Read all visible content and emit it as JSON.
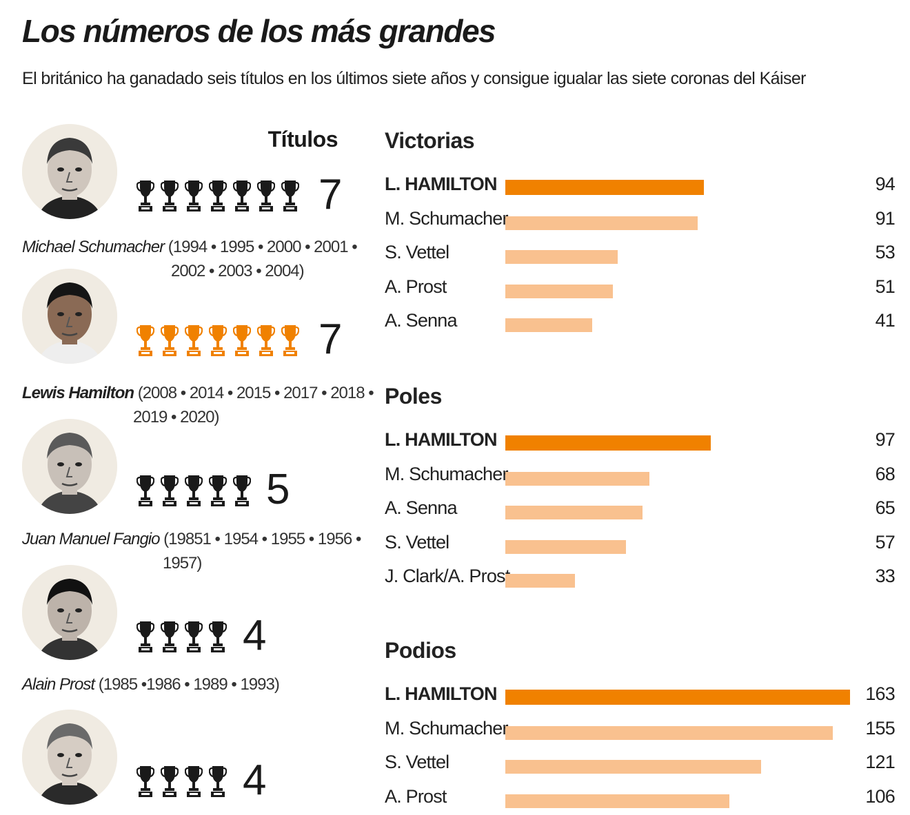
{
  "header": {
    "title": "Los números de los más grandes",
    "subtitle": "El británico ha ganadado seis títulos en los últimos siete años y consigue igualar las siete coronas del Káiser"
  },
  "titles_header": "Títulos",
  "champions": [
    {
      "name": "Michael Schumacher",
      "bold": false,
      "years_line1": "(1994 • 1995 • 2000 • 2001 •",
      "years_line2": "2002 • 2003 • 2004)",
      "titles": 7,
      "trophy_color": "#1a1a1a"
    },
    {
      "name": "Lewis Hamilton",
      "bold": true,
      "years_line1": "(2008 • 2014 • 2015 • 2017 • 2018 •",
      "years_line2": "2019 • 2020)",
      "titles": 7,
      "trophy_color": "#f08100"
    },
    {
      "name": "Juan Manuel Fangio",
      "bold": false,
      "years_line1": "(19851 • 1954 • 1955 • 1956 •",
      "years_line2": "1957)",
      "titles": 5,
      "trophy_color": "#1a1a1a"
    },
    {
      "name": "Alain Prost",
      "bold": false,
      "years_line1": "(1985 •1986 • 1989 • 1993)",
      "years_line2": "",
      "titles": 4,
      "trophy_color": "#1a1a1a"
    },
    {
      "name": "",
      "bold": false,
      "years_line1": "",
      "years_line2": "",
      "titles": 4,
      "trophy_color": "#1a1a1a"
    }
  ],
  "colors": {
    "highlight": "#f08100",
    "bar": "#f9c18f",
    "trophy": "#1a1a1a"
  },
  "chart_data": [
    {
      "type": "bar",
      "orientation": "horizontal",
      "title": "Victorias",
      "categories": [
        "L. HAMILTON",
        "M. Schumacher",
        "S. Vettel",
        "A. Prost",
        "A. Senna"
      ],
      "values": [
        94,
        91,
        53,
        51,
        41
      ],
      "highlight_index": 0
    },
    {
      "type": "bar",
      "orientation": "horizontal",
      "title": "Poles",
      "categories": [
        "L. HAMILTON",
        "M. Schumacher",
        "A. Senna",
        "S. Vettel",
        "J. Clark/A. Prost"
      ],
      "values": [
        97,
        68,
        65,
        57,
        33
      ],
      "highlight_index": 0
    },
    {
      "type": "bar",
      "orientation": "horizontal",
      "title": "Podios",
      "categories": [
        "L. HAMILTON",
        "M. Schumacher",
        "S. Vettel",
        "A. Prost"
      ],
      "values": [
        163,
        155,
        121,
        106
      ],
      "highlight_index": 0
    }
  ]
}
